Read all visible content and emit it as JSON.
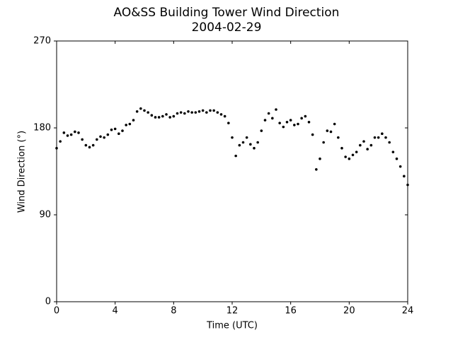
{
  "chart_data": {
    "type": "scatter",
    "title": "AO&SS Building Tower Wind Direction",
    "subtitle": "2004-02-29",
    "x_label": "Time (UTC)",
    "y_label": "Wind Direction (°)",
    "color": "#000000",
    "xlim": [
      0,
      24
    ],
    "xticks": [
      0,
      4,
      8,
      12,
      16,
      20,
      24
    ],
    "ylim": [
      0,
      270
    ],
    "yticks": [
      0,
      90,
      180,
      270
    ],
    "x": [
      0,
      0.25,
      0.5,
      0.75,
      1,
      1.25,
      1.5,
      1.75,
      2,
      2.25,
      2.5,
      2.75,
      3,
      3.25,
      3.5,
      3.75,
      4,
      4.25,
      4.5,
      4.75,
      5,
      5.25,
      5.5,
      5.75,
      6,
      6.25,
      6.5,
      6.75,
      7,
      7.25,
      7.5,
      7.75,
      8,
      8.25,
      8.5,
      8.75,
      9,
      9.25,
      9.5,
      9.75,
      10,
      10.25,
      10.5,
      10.75,
      11,
      11.25,
      11.5,
      11.75,
      12,
      12.25,
      12.5,
      12.75,
      13,
      13.25,
      13.5,
      13.75,
      14,
      14.25,
      14.5,
      14.75,
      15,
      15.25,
      15.5,
      15.75,
      16,
      16.25,
      16.5,
      16.75,
      17,
      17.25,
      17.5,
      17.75,
      18,
      18.25,
      18.5,
      18.75,
      19,
      19.25,
      19.5,
      19.75,
      20,
      20.25,
      20.5,
      20.75,
      21,
      21.25,
      21.5,
      21.75,
      22,
      22.25,
      22.5,
      22.75,
      23,
      23.25,
      23.5,
      23.75,
      24
    ],
    "values": [
      159,
      166,
      175,
      172,
      173,
      176,
      175,
      168,
      162,
      160,
      162,
      168,
      171,
      170,
      173,
      178,
      179,
      174,
      177,
      183,
      184,
      188,
      197,
      200,
      198,
      196,
      193,
      191,
      191,
      192,
      194,
      191,
      192,
      195,
      196,
      195,
      197,
      196,
      196,
      197,
      198,
      196,
      198,
      198,
      196,
      194,
      192,
      185,
      170,
      151,
      162,
      165,
      170,
      163,
      159,
      165,
      177,
      188,
      195,
      190,
      199,
      185,
      181,
      186,
      188,
      183,
      184,
      190,
      192,
      186,
      173,
      137,
      148,
      165,
      177,
      176,
      184,
      170,
      159,
      150,
      148,
      152,
      155,
      162,
      166,
      158,
      162,
      170,
      170,
      174,
      170,
      165,
      155,
      148,
      140,
      130,
      121
    ]
  }
}
